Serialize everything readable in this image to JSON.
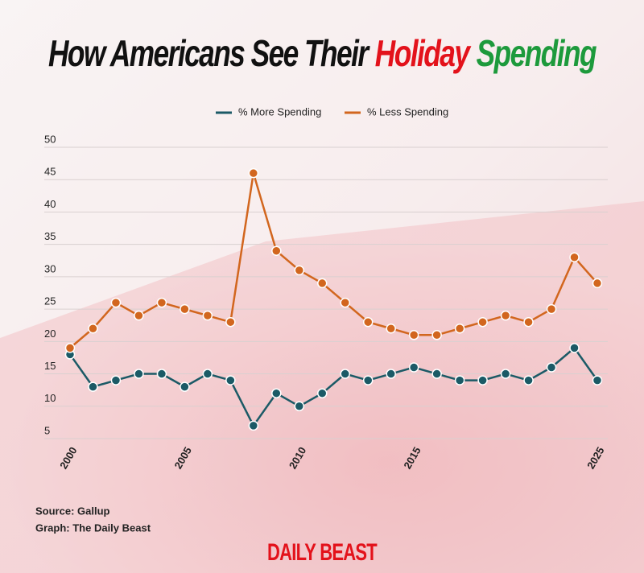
{
  "chart_data": {
    "type": "line",
    "title_parts": [
      {
        "text": "How Americans See Their",
        "color": "#111111"
      },
      {
        "text": "Holiday",
        "color": "#e3121b"
      },
      {
        "text": "Spending",
        "color": "#1d9a3c"
      }
    ],
    "categories": [
      "2000",
      null,
      null,
      null,
      null,
      "2005",
      null,
      null,
      null,
      null,
      "2010",
      null,
      null,
      null,
      null,
      "2015",
      null,
      null,
      null,
      null,
      null,
      null,
      null,
      "2025"
    ],
    "series": [
      {
        "name": "% More Spending",
        "color": "#1b5a66",
        "values": [
          18,
          13,
          14,
          15,
          15,
          13,
          15,
          14,
          7,
          12,
          10,
          12,
          15,
          14,
          15,
          16,
          15,
          14,
          14,
          15,
          14,
          16,
          19,
          14
        ]
      },
      {
        "name": "% Less Spending",
        "color": "#d2661e",
        "values": [
          19,
          22,
          26,
          24,
          26,
          25,
          24,
          23,
          46,
          34,
          31,
          29,
          26,
          23,
          22,
          21,
          21,
          22,
          23,
          24,
          23,
          25,
          33,
          29
        ]
      }
    ],
    "ylim": [
      5,
      50
    ],
    "yticks": [
      5,
      10,
      15,
      20,
      25,
      30,
      35,
      40,
      45,
      50
    ],
    "grid": true,
    "legend": "top",
    "source": "Source: Gallup",
    "credit": "Graph: The Daily Beast",
    "logo": "DAILY BEAST"
  }
}
